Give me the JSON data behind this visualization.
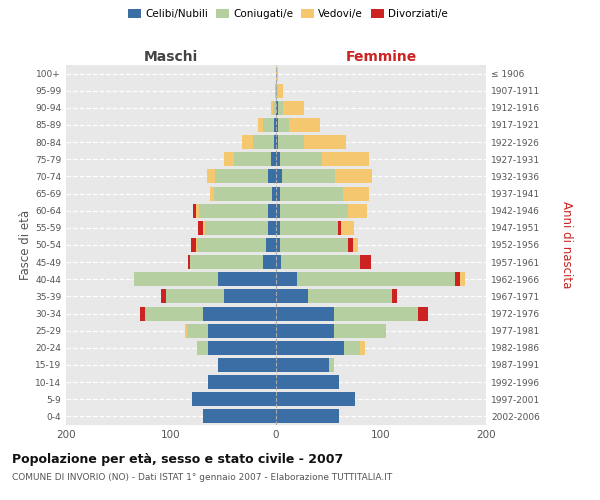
{
  "age_groups": [
    "0-4",
    "5-9",
    "10-14",
    "15-19",
    "20-24",
    "25-29",
    "30-34",
    "35-39",
    "40-44",
    "45-49",
    "50-54",
    "55-59",
    "60-64",
    "65-69",
    "70-74",
    "75-79",
    "80-84",
    "85-89",
    "90-94",
    "95-99",
    "100+"
  ],
  "birth_years": [
    "2002-2006",
    "1997-2001",
    "1992-1996",
    "1987-1991",
    "1982-1986",
    "1977-1981",
    "1972-1976",
    "1967-1971",
    "1962-1966",
    "1957-1961",
    "1952-1956",
    "1947-1951",
    "1942-1946",
    "1937-1941",
    "1932-1936",
    "1927-1931",
    "1922-1926",
    "1917-1921",
    "1912-1916",
    "1907-1911",
    "≤ 1906"
  ],
  "colors": {
    "celibe": "#3a6ea5",
    "coniugato": "#b5cfa0",
    "vedovo": "#f5c76e",
    "divorziato": "#cc2222"
  },
  "maschi": {
    "celibe": [
      70,
      80,
      65,
      55,
      65,
      65,
      70,
      50,
      55,
      12,
      10,
      8,
      8,
      4,
      8,
      5,
      2,
      2,
      0,
      0,
      0
    ],
    "coniugato": [
      0,
      0,
      0,
      0,
      10,
      20,
      55,
      55,
      80,
      70,
      65,
      60,
      65,
      55,
      50,
      35,
      20,
      10,
      3,
      1,
      0
    ],
    "vedovo": [
      0,
      0,
      0,
      0,
      0,
      2,
      0,
      0,
      0,
      0,
      1,
      2,
      3,
      4,
      8,
      10,
      10,
      5,
      2,
      0,
      0
    ],
    "divorziato": [
      0,
      0,
      0,
      0,
      0,
      0,
      5,
      5,
      0,
      2,
      5,
      4,
      3,
      0,
      0,
      0,
      0,
      0,
      0,
      0,
      0
    ]
  },
  "femmine": {
    "nubile": [
      60,
      75,
      60,
      50,
      65,
      55,
      55,
      30,
      20,
      5,
      4,
      4,
      4,
      4,
      6,
      4,
      2,
      2,
      2,
      0,
      0
    ],
    "coniugata": [
      0,
      0,
      0,
      5,
      15,
      50,
      80,
      80,
      150,
      75,
      65,
      55,
      65,
      60,
      50,
      40,
      25,
      10,
      5,
      2,
      0
    ],
    "vedova": [
      0,
      0,
      0,
      0,
      5,
      0,
      0,
      0,
      5,
      0,
      5,
      12,
      18,
      25,
      35,
      45,
      40,
      30,
      20,
      5,
      2
    ],
    "divorziata": [
      0,
      0,
      0,
      0,
      0,
      0,
      10,
      5,
      5,
      10,
      4,
      3,
      0,
      0,
      0,
      0,
      0,
      0,
      0,
      0,
      0
    ]
  },
  "xlim": 200,
  "title": "Popolazione per età, sesso e stato civile - 2007",
  "subtitle": "COMUNE DI INVORIO (NO) - Dati ISTAT 1° gennaio 2007 - Elaborazione TUTTITALIA.IT",
  "ylabel_left": "Fasce di età",
  "ylabel_right": "Anni di nascita",
  "xlabel_left": "Maschi",
  "xlabel_right": "Femmine",
  "plot_bg": "#e8e8e8"
}
